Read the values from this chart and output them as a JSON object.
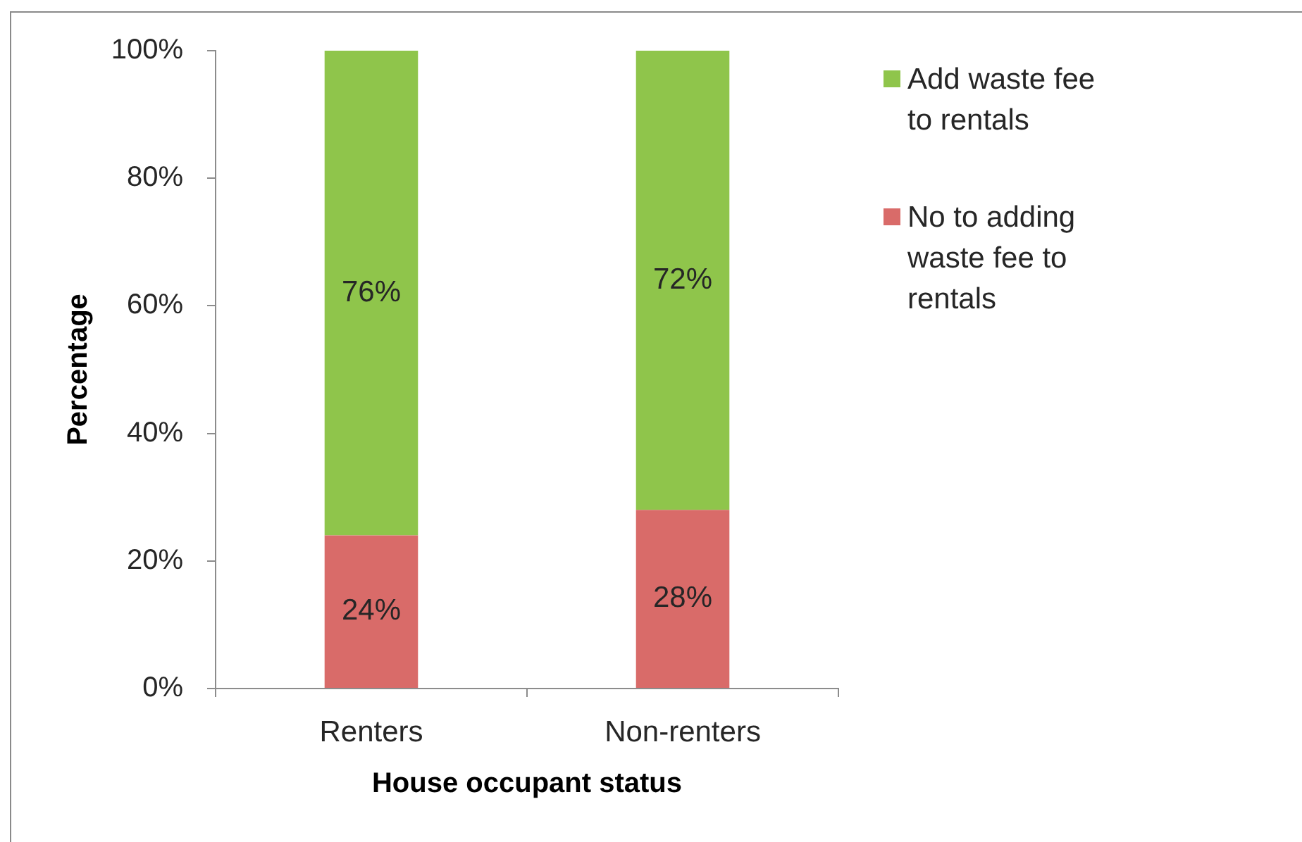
{
  "chart_data": {
    "type": "bar",
    "xlabel": "House occupant status",
    "ylabel": "Percentage",
    "categories": [
      "Renters",
      "Non-renters"
    ],
    "series": [
      {
        "name": "No to adding waste fee to rentals",
        "color": "#d96b69",
        "values": [
          24,
          28
        ],
        "value_labels": [
          "24%",
          "28%"
        ]
      },
      {
        "name": "Add waste fee to rentals",
        "color": "#8fc54b",
        "values": [
          76,
          72
        ],
        "value_labels": [
          "76%",
          "72%"
        ]
      }
    ],
    "stacked": true,
    "ylim": [
      0,
      100
    ],
    "yticks": [
      {
        "value": 0,
        "label": "0%"
      },
      {
        "value": 20,
        "label": "20%"
      },
      {
        "value": 40,
        "label": "40%"
      },
      {
        "value": 60,
        "label": "60%"
      },
      {
        "value": 80,
        "label": "80%"
      },
      {
        "value": 100,
        "label": "100%"
      }
    ],
    "legend": "top right"
  }
}
